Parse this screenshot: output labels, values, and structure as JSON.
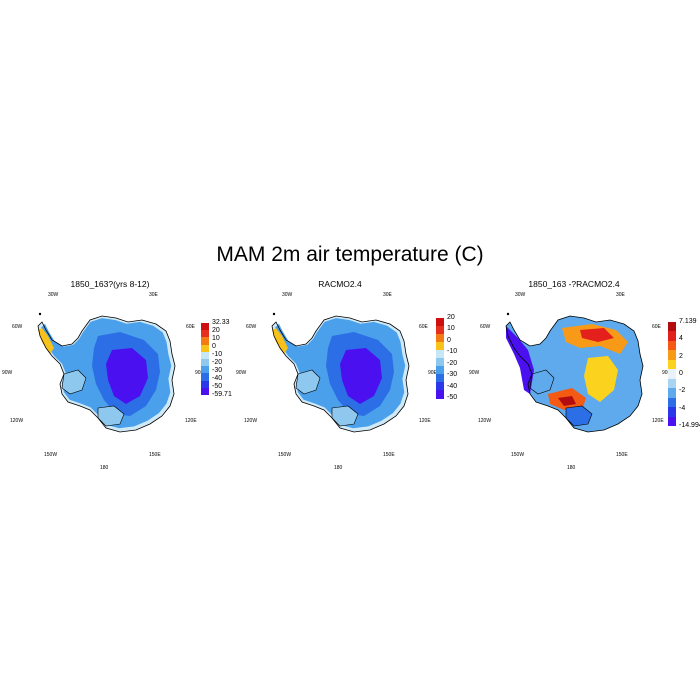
{
  "figure": {
    "title": "MAM 2m air temperature (C)"
  },
  "panels": [
    {
      "title": "1850_163?(yrs 8-12)",
      "lon_labels": [
        "30W",
        "30E",
        "60W",
        "60E",
        "90W",
        "90E",
        "120W",
        "120E",
        "150W",
        "150E",
        "180"
      ],
      "colorbar": {
        "labels": [
          "32.33",
          "20",
          "10",
          "0",
          "-10",
          "-20",
          "-30",
          "-40",
          "-50",
          "-59.71"
        ],
        "colors": [
          "#cf0e10",
          "#e6301e",
          "#f27b12",
          "#f8c21b",
          "#c8e7f6",
          "#8fc8ef",
          "#4aa0ea",
          "#2b6ee6",
          "#2b38e9",
          "#4a10ef"
        ]
      },
      "palette": "absolute"
    },
    {
      "title": "RACMO2.4",
      "lon_labels": [
        "30W",
        "30E",
        "60W",
        "60E",
        "90W",
        "90E",
        "120W",
        "120E",
        "150W",
        "150E",
        "180"
      ],
      "colorbar": {
        "labels": [
          "20",
          "10",
          "0",
          "-10",
          "-20",
          "-30",
          "-40",
          "-50"
        ],
        "colors": [
          "#cf0e10",
          "#e6301e",
          "#f27b12",
          "#f8c21b",
          "#c8e7f6",
          "#8fc8ef",
          "#4aa0ea",
          "#2b6ee6",
          "#2b38e9",
          "#4a10ef"
        ]
      },
      "palette": "absolute"
    },
    {
      "title": "1850_163 -?RACMO2.4",
      "lon_labels": [
        "30W",
        "30E",
        "60W",
        "60E",
        "90W",
        "90E",
        "120W",
        "120E",
        "150W",
        "150E",
        "180"
      ],
      "colorbar": {
        "labels": [
          "7.139",
          "4",
          "2",
          "0",
          "-2",
          "-4",
          "-14.994"
        ],
        "colors": [
          "#b20c10",
          "#e4201c",
          "#f45a14",
          "#f89a18",
          "#fbd21e",
          "#e8f2f8",
          "#a8d4f2",
          "#5eaaec",
          "#2b6ee6",
          "#2b38e9",
          "#4a10ef"
        ]
      },
      "palette": "difference"
    }
  ]
}
